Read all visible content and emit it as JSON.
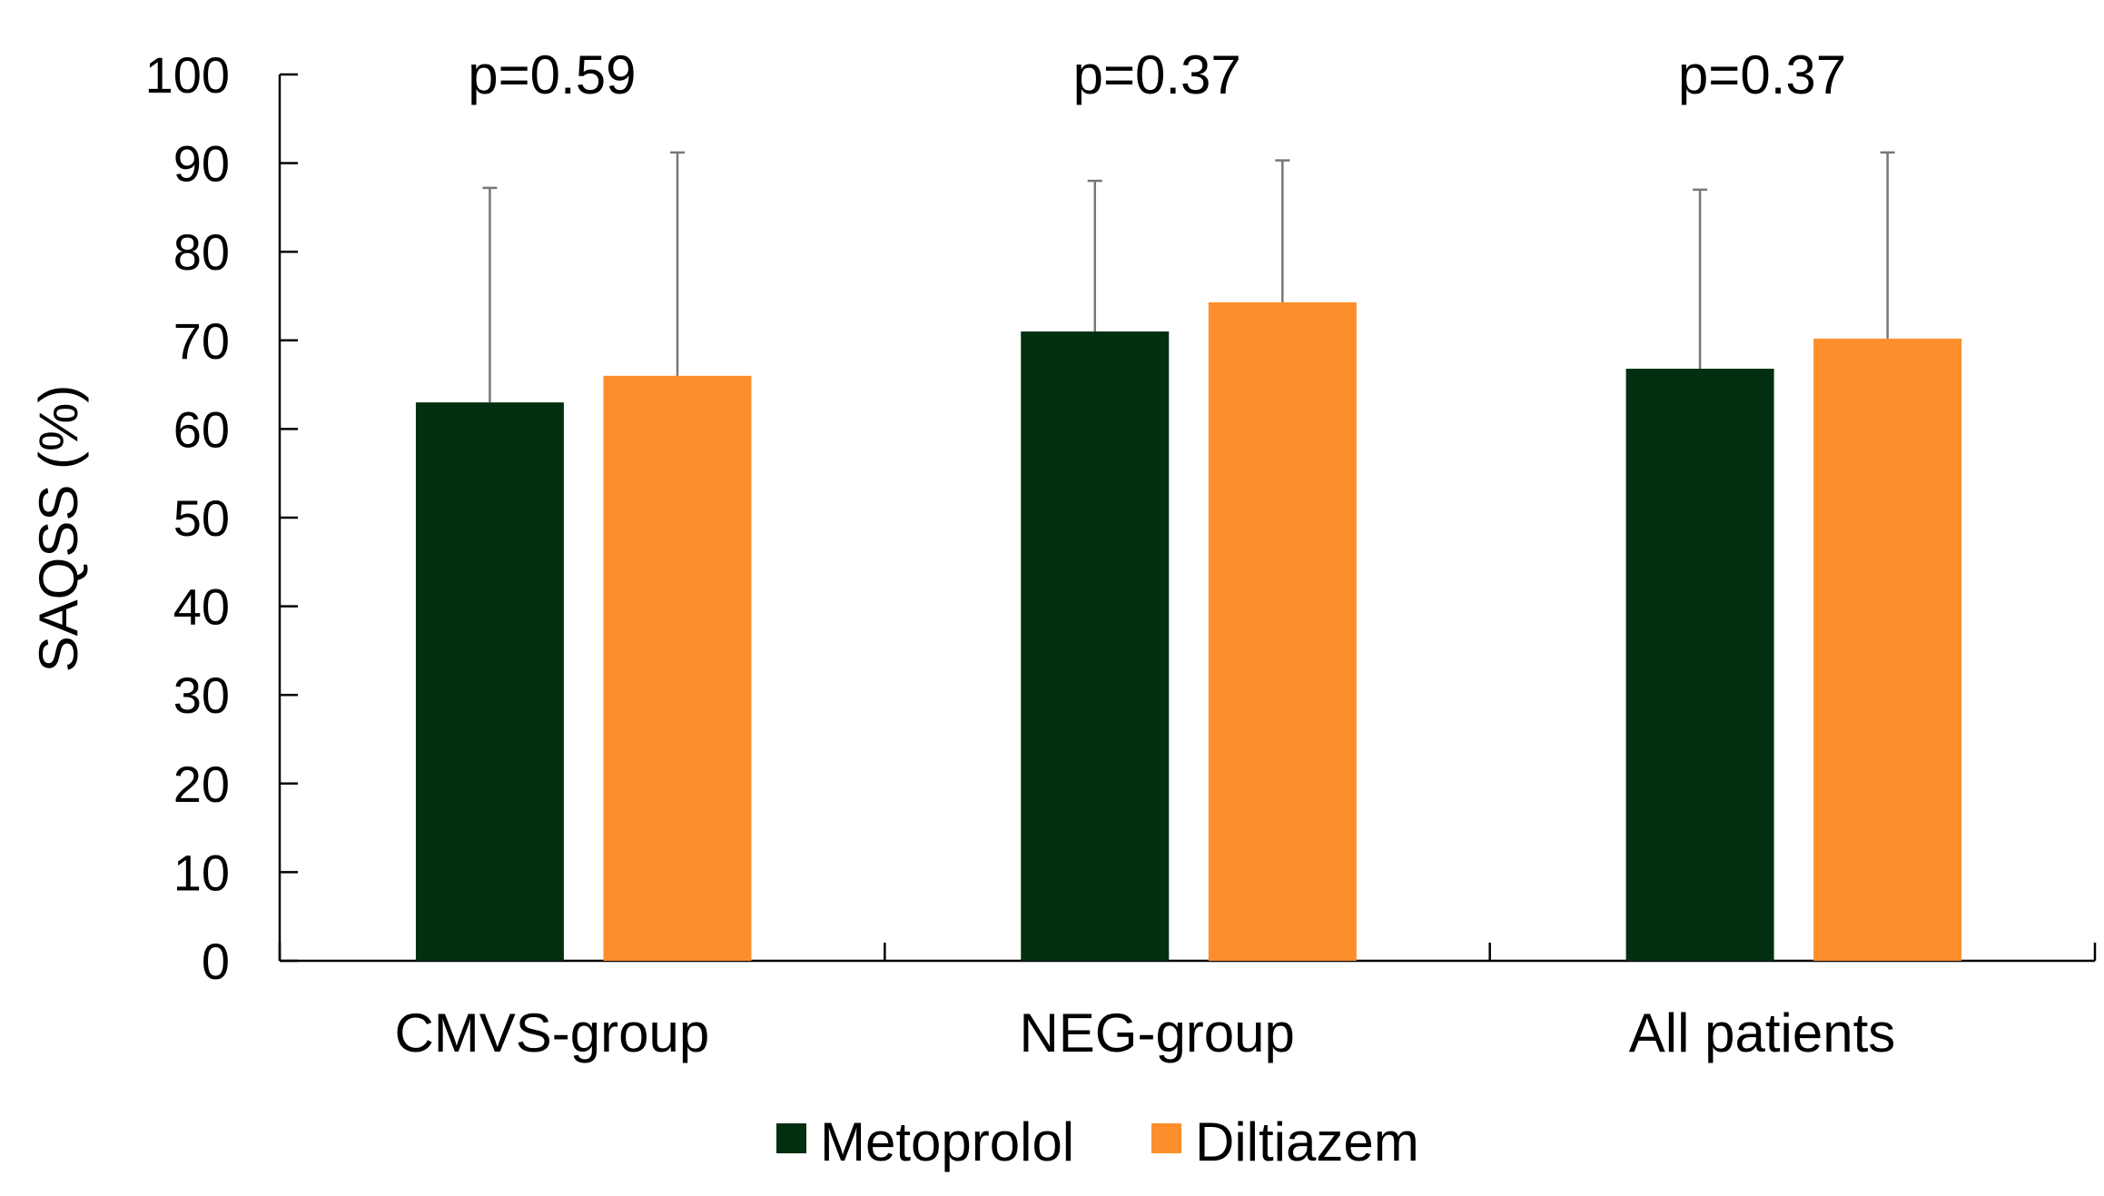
{
  "chart_data": {
    "type": "bar",
    "categories": [
      "CMVS-group",
      "NEG-group",
      "All patients"
    ],
    "series": [
      {
        "name": "Metoprolol",
        "color": "#022f10",
        "values": [
          63,
          71,
          66.8
        ],
        "error_upper": [
          87.2,
          88,
          87
        ]
      },
      {
        "name": "Diltiazem",
        "color": "#fc8f2c",
        "values": [
          66,
          74.3,
          70.2
        ],
        "error_upper": [
          91.2,
          90.3,
          91.2
        ]
      }
    ],
    "annotations": [
      "p=0.59",
      "p=0.37",
      "p=0.37"
    ],
    "title": "",
    "xlabel": "",
    "ylabel": "SAQSS (%)",
    "ylim": [
      0,
      100
    ],
    "yticks": [
      "0",
      "10",
      "20",
      "30",
      "40",
      "50",
      "60",
      "70",
      "80",
      "90",
      "100"
    ],
    "grid": false,
    "legend_position": "bottom"
  }
}
